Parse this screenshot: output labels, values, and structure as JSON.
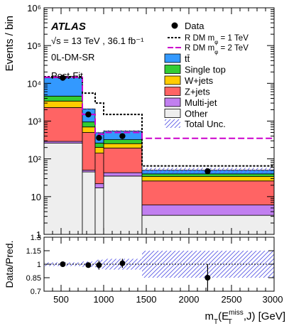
{
  "figure": {
    "atlas_label": "ATLAS",
    "energy_lumi": "√s = 13 TeV , 36.1 fb⁻¹",
    "region": "0L-DM-SR",
    "fit_status": "Post-Fit"
  },
  "chart_data": [
    {
      "type": "bar",
      "stacked": true,
      "log_scale_y": true,
      "ylabel": "Events / bin",
      "ylim": [
        1,
        1000000
      ],
      "xlim": [
        300,
        3000
      ],
      "bin_edges": [
        300,
        750,
        900,
        1000,
        1450,
        3000
      ],
      "y_tick_labels": [
        "1",
        "10",
        "10²",
        "10³",
        "10⁴",
        "10⁵",
        "10⁶"
      ],
      "series": [
        {
          "name": "Other",
          "color": "#eeeeee",
          "values": [
            260,
            45,
            17,
            35,
            3.2
          ]
        },
        {
          "name": "Multi-jet",
          "color": "#c17ff0",
          "values": [
            30,
            5,
            5,
            8,
            2.8
          ]
        },
        {
          "name": "Z+jets",
          "color": "#ff6464",
          "values": [
            2000,
            450,
            120,
            150,
            20
          ]
        },
        {
          "name": "W+jets",
          "color": "#ffcc00",
          "values": [
            1100,
            200,
            60,
            60,
            8
          ]
        },
        {
          "name": "Single top",
          "color": "#33cc33",
          "values": [
            1200,
            250,
            60,
            70,
            6
          ]
        },
        {
          "name": "tt̄",
          "color": "#3399ff",
          "values": [
            9400,
            1150,
            230,
            220,
            10
          ]
        }
      ],
      "total_unc_label": "Total Unc.",
      "total_unc_fraction": [
        0.02,
        0.03,
        0.05,
        0.06,
        0.15
      ],
      "signals": [
        {
          "name": "R DM m_φ = 1 TeV",
          "style": "dotted",
          "color": "#000000",
          "values": [
            15000,
            5500,
            3000,
            1500,
            65
          ]
        },
        {
          "name": "R DM m_φ = 2 TeV",
          "style": "dashed",
          "color": "#cc00cc",
          "values": [
            14500,
            1500,
            450,
            500,
            350
          ]
        }
      ],
      "data": {
        "name": "Data",
        "x": [
          520,
          820,
          945,
          1220,
          2220
        ],
        "y": [
          14000,
          1500,
          360,
          400,
          47
        ]
      }
    },
    {
      "type": "scatter",
      "ylabel": "Data/Pred.",
      "xlabel": "m_T(E_T^miss,J) [GeV]",
      "ylim": [
        0.7,
        1.3
      ],
      "xlim": [
        300,
        3000
      ],
      "y_ticks": [
        0.7,
        0.85,
        1,
        1.15,
        1.3
      ],
      "y_tick_labels": [
        "0.7",
        "0.85",
        "1",
        "1.15",
        "1.3"
      ],
      "x_ticks": [
        500,
        1000,
        1500,
        2000,
        2500,
        3000
      ],
      "x_tick_labels": [
        "500",
        "1000",
        "1500",
        "2000",
        "2500",
        "3000"
      ],
      "x": [
        520,
        820,
        945,
        1220,
        2220
      ],
      "y": [
        1.0,
        0.99,
        0.99,
        1.01,
        0.85
      ],
      "yerr": [
        0.01,
        0.03,
        0.05,
        0.05,
        0.15
      ]
    }
  ]
}
